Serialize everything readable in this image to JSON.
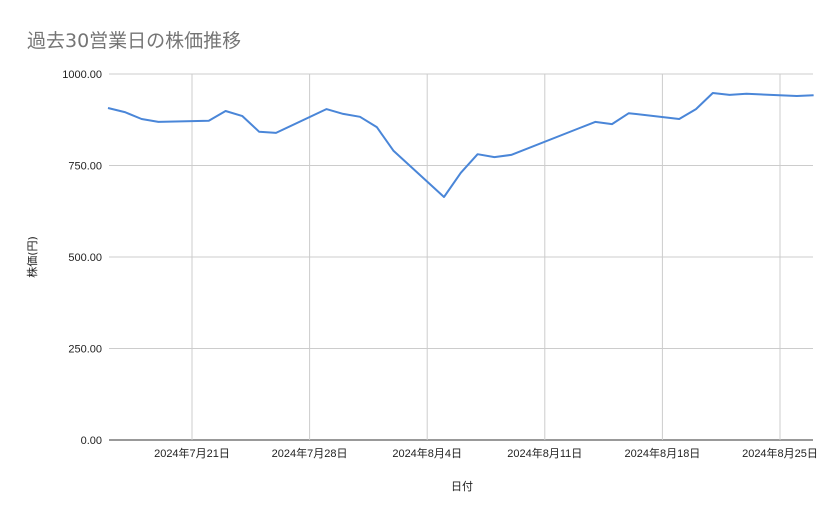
{
  "chart_data": {
    "type": "line",
    "title": "過去30営業日の株価推移",
    "xlabel": "日付",
    "ylabel": "株価(円)",
    "ylim": [
      0,
      1000
    ],
    "xlim": [
      "2024-07-16",
      "2024-08-27"
    ],
    "grid": true,
    "y_ticks": [
      "0.00",
      "250.00",
      "500.00",
      "750.00",
      "1000.00"
    ],
    "y_tick_values": [
      0,
      250,
      500,
      750,
      1000
    ],
    "x_ticks": [
      {
        "date": "2024-07-21",
        "label": "2024年7月21日"
      },
      {
        "date": "2024-07-28",
        "label": "2024年7月28日"
      },
      {
        "date": "2024-08-04",
        "label": "2024年8月4日"
      },
      {
        "date": "2024-08-11",
        "label": "2024年8月11日"
      },
      {
        "date": "2024-08-18",
        "label": "2024年8月18日"
      },
      {
        "date": "2024-08-25",
        "label": "2024年8月25日"
      }
    ],
    "series": [
      {
        "color": "#4a86d8",
        "x": [
          "2024-07-16",
          "2024-07-17",
          "2024-07-18",
          "2024-07-19",
          "2024-07-22",
          "2024-07-23",
          "2024-07-24",
          "2024-07-25",
          "2024-07-26",
          "2024-07-29",
          "2024-07-30",
          "2024-07-31",
          "2024-08-01",
          "2024-08-02",
          "2024-08-05",
          "2024-08-06",
          "2024-08-07",
          "2024-08-08",
          "2024-08-09",
          "2024-08-13",
          "2024-08-14",
          "2024-08-15",
          "2024-08-16",
          "2024-08-19",
          "2024-08-20",
          "2024-08-21",
          "2024-08-22",
          "2024-08-23",
          "2024-08-26",
          "2024-08-27"
        ],
        "values": [
          907,
          896,
          877,
          869,
          872,
          899,
          885,
          842,
          839,
          904,
          891,
          883,
          855,
          790,
          664,
          730,
          781,
          773,
          779,
          851,
          869,
          863,
          893,
          877,
          904,
          948,
          943,
          946,
          940,
          942
        ]
      }
    ]
  }
}
